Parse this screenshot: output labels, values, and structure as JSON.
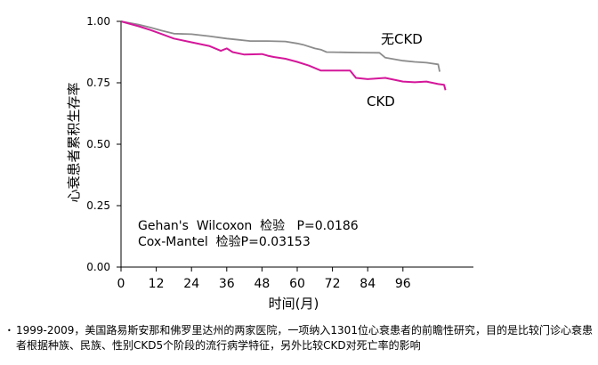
{
  "chart_data": {
    "type": "line",
    "title": "",
    "xlabel": "时间(月)",
    "ylabel": "心衰患者累积生存率",
    "xlim": [
      0,
      120
    ],
    "ylim": [
      0,
      1
    ],
    "x_ticks": [
      0,
      12,
      24,
      36,
      48,
      60,
      72,
      84,
      96
    ],
    "y_ticks": [
      "0.00",
      "0.25",
      "0.50",
      "0.75",
      "1.00"
    ],
    "series": [
      {
        "name": "无CKD",
        "color": "#8c8c8c",
        "x": [
          0,
          6,
          10,
          14,
          18,
          24,
          30,
          36,
          40,
          44,
          50,
          56,
          60,
          62,
          66,
          68,
          70,
          76,
          82,
          88,
          90,
          96,
          100,
          104,
          108,
          108.5
        ],
        "y": [
          1.0,
          0.987,
          0.975,
          0.962,
          0.95,
          0.948,
          0.94,
          0.93,
          0.925,
          0.92,
          0.92,
          0.918,
          0.91,
          0.905,
          0.89,
          0.885,
          0.875,
          0.874,
          0.873,
          0.872,
          0.852,
          0.84,
          0.835,
          0.832,
          0.825,
          0.795
        ]
      },
      {
        "name": "CKD",
        "color": "#d4179a",
        "x": [
          0,
          6,
          10,
          14,
          18,
          24,
          30,
          34,
          36,
          38,
          42,
          48,
          50,
          52,
          56,
          60,
          64,
          68,
          74,
          78,
          80,
          84,
          90,
          96,
          100,
          104,
          108,
          110,
          110.5
        ],
        "y": [
          1.0,
          0.98,
          0.965,
          0.948,
          0.93,
          0.915,
          0.9,
          0.88,
          0.89,
          0.875,
          0.865,
          0.867,
          0.86,
          0.855,
          0.848,
          0.835,
          0.82,
          0.8,
          0.8,
          0.8,
          0.77,
          0.765,
          0.77,
          0.755,
          0.752,
          0.755,
          0.745,
          0.742,
          0.72
        ]
      }
    ],
    "series_labels": [
      "无CKD",
      "CKD"
    ],
    "annotations": [
      "Gehan's  Wilcoxon  检验   P=0.0186",
      "Cox-Mantel  检验P=0.03153"
    ]
  },
  "footnote": {
    "bullet": "•",
    "text": "1999-2009，美国路易斯安那和佛罗里达州的两家医院，一项纳入1301位心衰患者的前瞻性研究，目的是比较门诊心衰患者根据种族、民族、性别CKD5个阶段的流行病学特征，另外比较CKD对死亡率的影响"
  }
}
